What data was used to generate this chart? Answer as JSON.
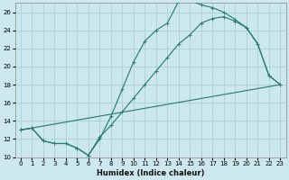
{
  "xlabel": "Humidex (Indice chaleur)",
  "bg_color": "#cce8ee",
  "grid_color": "#aad4dc",
  "line_color": "#2d7d6e",
  "ylim": [
    10,
    27
  ],
  "xlim": [
    -0.5,
    23.5
  ],
  "yticks": [
    10,
    12,
    14,
    16,
    18,
    20,
    22,
    24,
    26
  ],
  "xticks": [
    0,
    1,
    2,
    3,
    4,
    5,
    6,
    7,
    8,
    9,
    10,
    11,
    12,
    13,
    14,
    15,
    16,
    17,
    18,
    19,
    20,
    21,
    22,
    23
  ],
  "line1_x": [
    0,
    1,
    2,
    3,
    4,
    5,
    6,
    7,
    8,
    9,
    10,
    11,
    12,
    13,
    14,
    15,
    16,
    17,
    18,
    19,
    20,
    21,
    22,
    23
  ],
  "line1_y": [
    13.0,
    13.2,
    11.8,
    11.5,
    11.5,
    11.0,
    10.2,
    12.0,
    14.5,
    17.5,
    20.5,
    22.8,
    24.0,
    24.8,
    27.2,
    27.3,
    26.8,
    26.5,
    26.0,
    25.2,
    24.3,
    22.5,
    19.0,
    18.0
  ],
  "line2_x": [
    0,
    1,
    2,
    3,
    4,
    5,
    6,
    7,
    8,
    9,
    10,
    11,
    12,
    13,
    14,
    15,
    16,
    17,
    18,
    19,
    20,
    21,
    22,
    23
  ],
  "line2_y": [
    13.0,
    13.2,
    11.8,
    11.5,
    11.5,
    11.0,
    10.2,
    12.2,
    13.5,
    15.0,
    16.5,
    18.0,
    19.5,
    21.0,
    22.5,
    23.5,
    24.8,
    25.3,
    25.5,
    25.0,
    24.3,
    22.5,
    19.0,
    18.0
  ],
  "line3_x": [
    0,
    23
  ],
  "line3_y": [
    13.0,
    18.0
  ]
}
